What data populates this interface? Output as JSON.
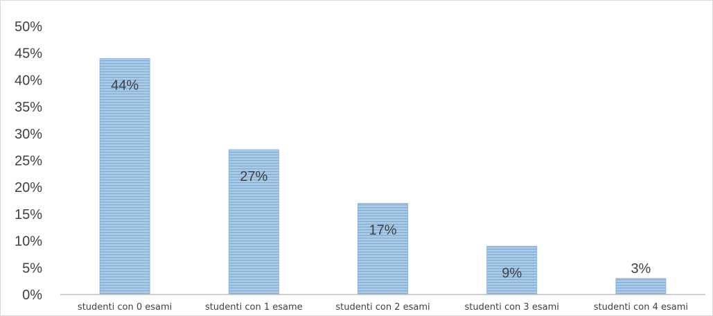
{
  "chart_data": {
    "type": "bar",
    "title": "",
    "xlabel": "",
    "ylabel": "",
    "categories": [
      "studenti con 0 esami",
      "studenti con 1 esame",
      "studenti con 2 esami",
      "studenti con 3 esami",
      "studenti con 4 esami"
    ],
    "values": [
      44,
      27,
      17,
      9,
      3
    ],
    "data_labels": [
      "44%",
      "27%",
      "17%",
      "9%",
      "3%"
    ],
    "ylim": [
      0,
      50
    ],
    "y_ticks": [
      "0%",
      "5%",
      "10%",
      "15%",
      "20%",
      "25%",
      "30%",
      "35%",
      "40%",
      "45%",
      "50%"
    ],
    "grid": false,
    "legend": "none",
    "bar_color": "#9dc3e6",
    "bar_stripe_color": "#7aa8d6",
    "bar_edge_color": "#8fb4dc"
  }
}
